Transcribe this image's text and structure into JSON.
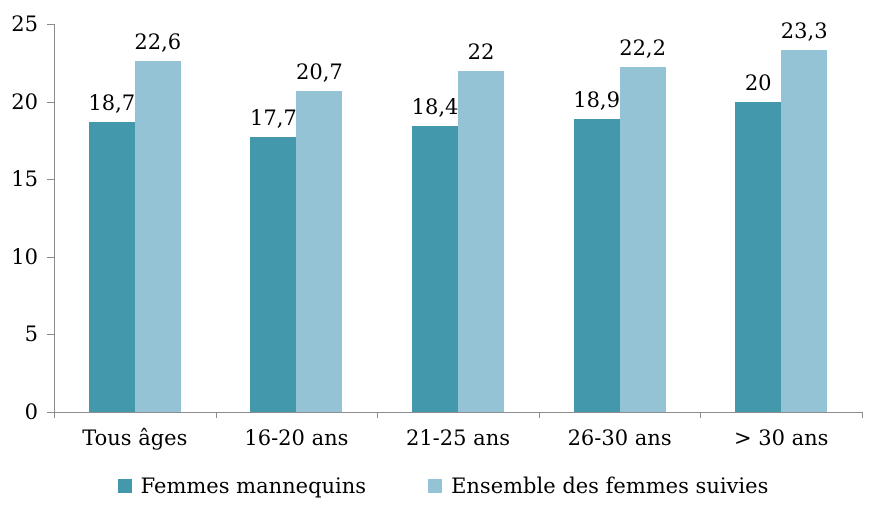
{
  "chart_data": {
    "type": "bar",
    "title": "",
    "xlabel": "",
    "ylabel": "",
    "categories": [
      "Tous âges",
      "16-20 ans",
      "21-25 ans",
      "26-30 ans",
      "> 30 ans"
    ],
    "series": [
      {
        "name": "Femmes mannequins",
        "color": "#4398AC",
        "values": [
          18.7,
          17.7,
          18.4,
          18.9,
          20
        ],
        "value_labels": [
          "18,7",
          "17,7",
          "18,4",
          "18,9",
          "20"
        ]
      },
      {
        "name": "Ensemble des femmes suivies",
        "color": "#93C3D5",
        "values": [
          22.6,
          20.7,
          22,
          22.2,
          23.3
        ],
        "value_labels": [
          "22,6",
          "20,7",
          "22",
          "22,2",
          "23,3"
        ]
      }
    ],
    "ylim": [
      0,
      25
    ],
    "yticks": [
      "0",
      "5",
      "10",
      "15",
      "20",
      "25"
    ],
    "grid": false,
    "legend_position": "bottom",
    "axis_color": "#8C8C8C",
    "text_color": "#000000"
  }
}
